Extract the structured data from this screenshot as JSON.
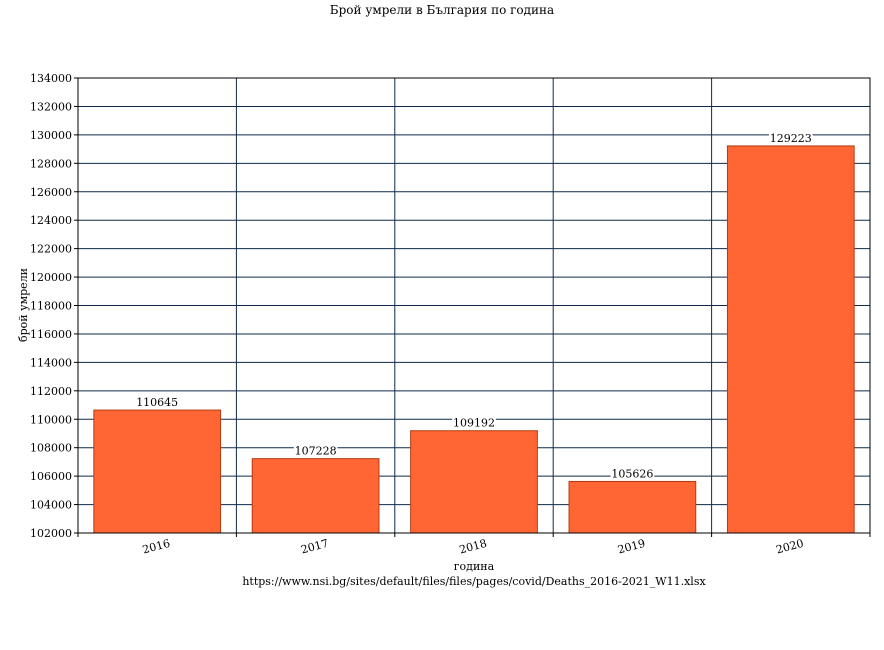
{
  "chart_data": {
    "type": "bar",
    "title": "Брой умрели в България по година",
    "xlabel": "година",
    "ylabel": "брой умрели",
    "source": "https://www.nsi.bg/sites/default/files/files/pages/covid/Deaths_2016-2021_W11.xlsx",
    "categories": [
      "2016",
      "2017",
      "2018",
      "2019",
      "2020"
    ],
    "values": [
      110645,
      107228,
      109192,
      105626,
      129223
    ],
    "data_labels": [
      "110645",
      "107228",
      "109192",
      "105626",
      "129223"
    ],
    "ylim": [
      102000,
      134000
    ],
    "yticks": [
      102000,
      104000,
      106000,
      108000,
      110000,
      112000,
      114000,
      116000,
      118000,
      120000,
      122000,
      124000,
      126000,
      128000,
      130000,
      132000,
      134000
    ],
    "ytick_labels": [
      "102000",
      "104000",
      "106000",
      "108000",
      "110000",
      "112000",
      "114000",
      "116000",
      "118000",
      "120000",
      "122000",
      "124000",
      "126000",
      "128000",
      "130000",
      "132000",
      "134000"
    ],
    "grid": true,
    "legend": "none",
    "colors": {
      "bar": "#ff6633",
      "bar_edge": "#b33a12",
      "grid": "#0d2a4a",
      "axis": "#000000"
    }
  }
}
